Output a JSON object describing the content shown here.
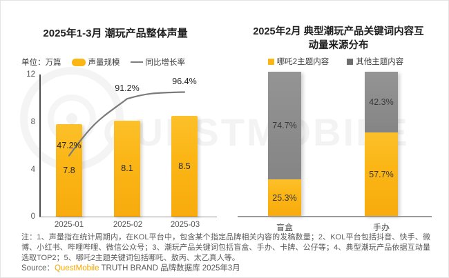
{
  "page": {
    "watermark": "QUESTMOBILE",
    "notes": "注：1、声量指在统计周期内，在KOL平台中，包含某个指定品牌相关内容的发稿数量；2、KOL平台包括抖音、快手、微博、小红书、哔哩哔哩、微信公众号；3、潮玩产品关键词包括盲盒、手办、卡牌、公仔等；4、典型潮玩产品依据互动量选取TOP2；5、哪吒2主题关键词包括哪吒、敖丙、太乙真人等。",
    "source_prefix": "Source：",
    "source_brand": "QuestMobile",
    "source_suffix": " TRUTH BRAND 品牌数据库 2025年3月"
  },
  "left_chart": {
    "unit_label": "单位：万篇"
  },
  "right_chart": {
    "title_line1": "2025年2月 典型潮玩产品关键词内容互",
    "title_line2": "动量来源分布"
  },
  "colors": {
    "accent_yellow": "#FBB616",
    "bar_gray": "#8A8A8A",
    "line_gray": "#7E7E7E",
    "brand_orange": "#F7A600"
  },
  "chart_data": [
    {
      "type": "bar",
      "title": "2025年1-3月 潮玩产品整体声量",
      "unit": "万篇",
      "categories": [
        "2025-01",
        "2025-02",
        "2025-03"
      ],
      "series": [
        {
          "name": "声量规模",
          "chart": "bar",
          "values": [
            7.8,
            8.1,
            8.5
          ]
        },
        {
          "name": "同比增长率",
          "chart": "line",
          "values": [
            47.2,
            91.2,
            96.4
          ],
          "labels": [
            "47.2%",
            "91.2%",
            "96.4%"
          ]
        }
      ],
      "ylim": [
        0,
        12
      ],
      "y_ticks": [
        0,
        4,
        8,
        12
      ],
      "y_ticks_display": [
        "12",
        "8",
        "4",
        "0"
      ],
      "grid": false,
      "legend_position": "top"
    },
    {
      "type": "stacked-bar",
      "title": "2025年2月 典型潮玩产品关键词内容互动量来源分布",
      "unit": "%",
      "categories": [
        "盲盒",
        "手办"
      ],
      "series": [
        {
          "name": "哪吒2主题内容",
          "values": [
            25.3,
            57.7
          ],
          "labels": [
            "25.3%",
            "57.7%"
          ]
        },
        {
          "name": "其他主题内容",
          "values": [
            74.7,
            42.3
          ],
          "labels": [
            "74.7%",
            "42.3%"
          ]
        }
      ],
      "ylim": [
        0,
        100
      ],
      "grid": false,
      "legend_position": "top"
    }
  ]
}
